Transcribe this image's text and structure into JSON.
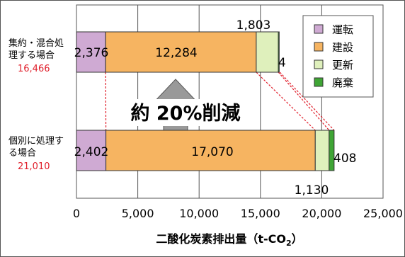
{
  "chart_data": {
    "type": "bar",
    "orientation": "horizontal",
    "stacked": true,
    "categories": [
      {
        "label_lines": [
          "集約・混合処",
          "理する場合"
        ],
        "total_label": "16,466",
        "total": 16466
      },
      {
        "label_lines": [
          "個別に処理す",
          "る場合"
        ],
        "total_label": "21,010",
        "total": 21010
      }
    ],
    "series": [
      {
        "name": "運転",
        "color": "#cfaad3",
        "values": [
          2376,
          2402
        ],
        "labels": [
          "2,376",
          "2,402"
        ]
      },
      {
        "name": "建設",
        "color": "#f6b461",
        "values": [
          12284,
          17070
        ],
        "labels": [
          "12,284",
          "17,070"
        ]
      },
      {
        "name": "更新",
        "color": "#dff0bc",
        "values": [
          1803,
          1130
        ],
        "labels": [
          "1,803",
          "1,130"
        ]
      },
      {
        "name": "廃棄",
        "color": "#3fa535",
        "values": [
          4,
          408
        ],
        "labels": [
          "4",
          "408"
        ]
      }
    ],
    "xlim": [
      0,
      25000
    ],
    "xticks": [
      0,
      5000,
      10000,
      15000,
      20000,
      25000
    ],
    "xtick_labels": [
      "0",
      "5,000",
      "10,000",
      "15,000",
      "20,000",
      "25,000"
    ],
    "xlabel_main": "二酸化炭素排出量（t-CO",
    "xlabel_sub": "2",
    "xlabel_tail": "）",
    "annotation": "約 20%削減",
    "legend_position": "top-right",
    "grid": true
  }
}
